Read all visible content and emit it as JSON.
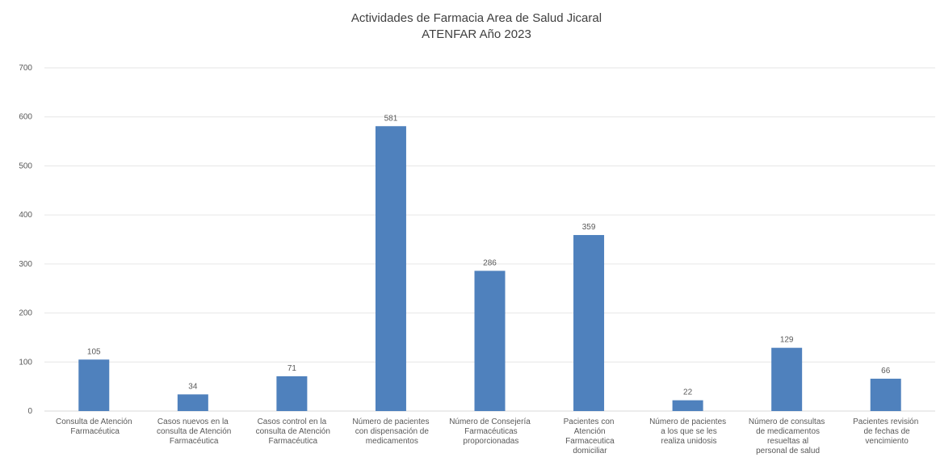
{
  "chart_data": {
    "type": "bar",
    "title": "Actividades de Farmacia Area de Salud Jicaral",
    "subtitle": "ATENFAR Año 2023",
    "categories": [
      "Consulta de Atención Farmacéutica",
      "Casos nuevos en la consulta de Atención Farmacéutica",
      "Casos control en la consulta de Atención Farmacéutica",
      "Número de pacientes con dispensación de medicamentos",
      "Número de Consejería Farmacéuticas proporcionadas",
      "Pacientes con Atención Farmaceutica domiciliar",
      "Número de pacientes a los que se les realiza unidosis",
      "Número de consultas de medicamentos resueltas al personal de salud",
      "Pacientes revisión de fechas de vencimiento"
    ],
    "values": [
      105,
      34,
      71,
      581,
      286,
      359,
      22,
      129,
      66
    ],
    "color": "#4f81bd",
    "ylim": [
      0,
      700
    ],
    "yticks": [
      0,
      100,
      200,
      300,
      400,
      500,
      600,
      700
    ],
    "grid": true
  }
}
